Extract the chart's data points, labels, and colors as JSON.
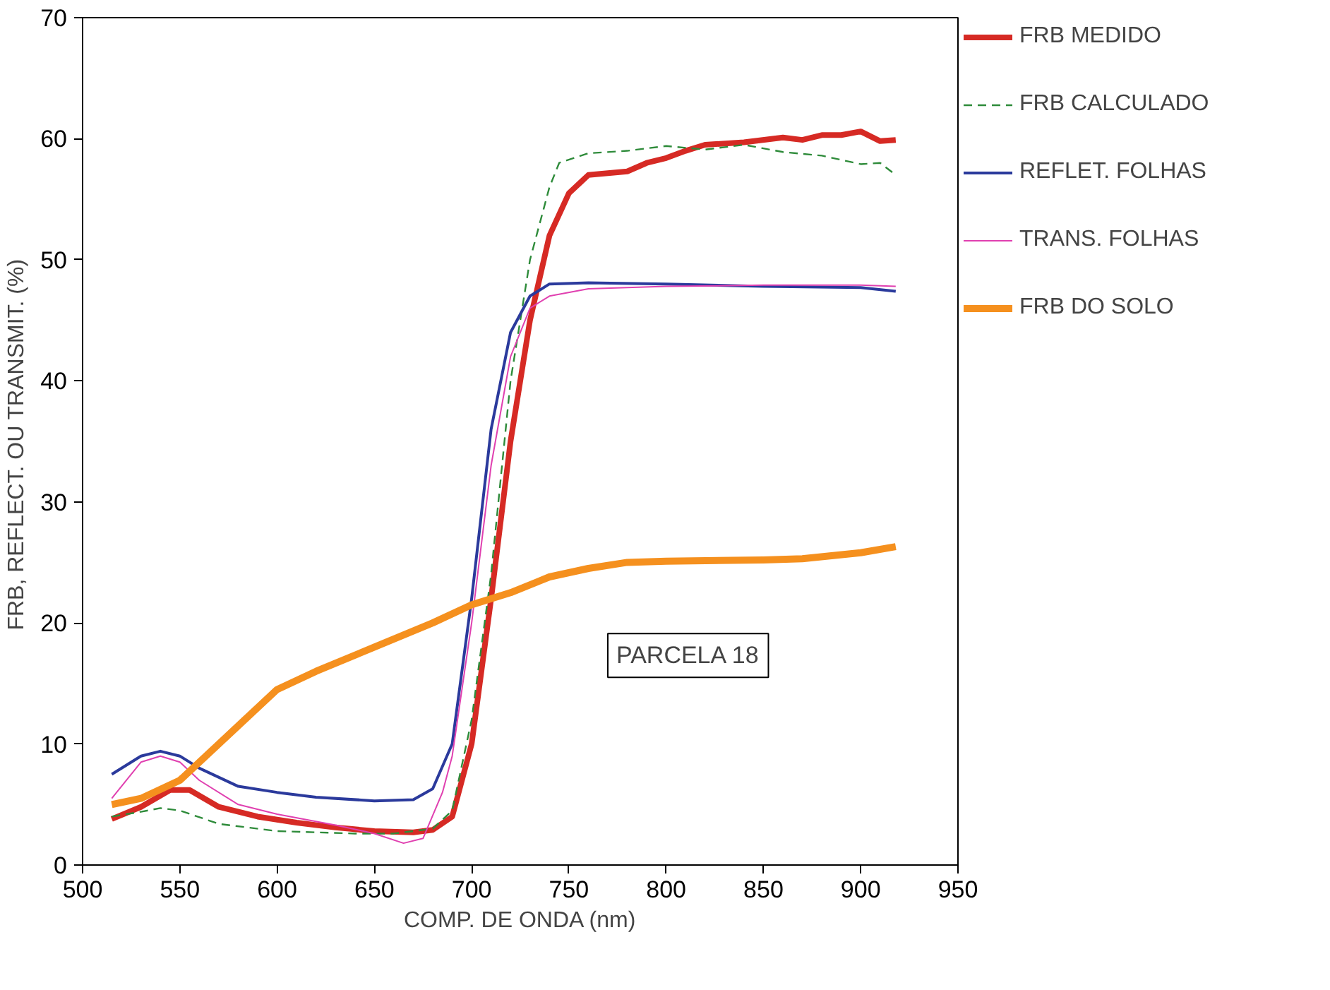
{
  "chart_data": {
    "type": "line",
    "xlabel": "COMP. DE ONDA (nm)",
    "ylabel": "FRB, REFLECT. OU TRANSMIT.  (%)",
    "xlim": [
      500,
      950
    ],
    "xticks": [
      500,
      550,
      600,
      650,
      700,
      750,
      800,
      850,
      900,
      950
    ],
    "ylim": [
      0,
      70
    ],
    "yticks": [
      0,
      10,
      20,
      30,
      40,
      50,
      60,
      70
    ],
    "grid": false,
    "legend": "right",
    "marker": "none",
    "annotations": [
      "PARCELA 18"
    ],
    "series": [
      {
        "name": "FRB MEDIDO",
        "color": "#d62a24",
        "line_style": "solid",
        "x": [
          515,
          530,
          545,
          555,
          570,
          590,
          610,
          630,
          650,
          670,
          680,
          690,
          700,
          710,
          720,
          730,
          740,
          750,
          760,
          780,
          790,
          800,
          810,
          820,
          840,
          860,
          870,
          880,
          890,
          900,
          910,
          918
        ],
        "values": [
          3.8,
          4.8,
          6.2,
          6.2,
          4.8,
          4,
          3.5,
          3.1,
          2.8,
          2.7,
          2.9,
          4,
          10,
          22,
          35,
          45,
          52,
          55.5,
          57,
          57.3,
          58,
          58.4,
          59,
          59.5,
          59.7,
          60.1,
          59.9,
          60.3,
          60.3,
          60.6,
          59.8,
          59.9
        ]
      },
      {
        "name": "FRB CALCULADO",
        "color": "#2e8b3a",
        "line_style": "dashed",
        "x": [
          515,
          530,
          540,
          550,
          570,
          600,
          640,
          660,
          680,
          690,
          700,
          710,
          720,
          730,
          740,
          745,
          760,
          780,
          800,
          820,
          840,
          860,
          880,
          900,
          910,
          918
        ],
        "values": [
          4,
          4.4,
          4.7,
          4.5,
          3.4,
          2.8,
          2.6,
          2.6,
          3,
          4.5,
          12,
          24,
          40,
          50,
          56,
          58,
          58.8,
          59,
          59.4,
          59.1,
          59.5,
          58.9,
          58.6,
          57.9,
          58,
          57
        ]
      },
      {
        "name": "REFLET. FOLHAS",
        "color": "#2b3a9c",
        "line_style": "solid",
        "x": [
          515,
          530,
          540,
          550,
          560,
          580,
          600,
          620,
          650,
          670,
          680,
          690,
          700,
          710,
          720,
          730,
          740,
          760,
          800,
          850,
          900,
          918
        ],
        "values": [
          7.5,
          9,
          9.4,
          9,
          8,
          6.5,
          6,
          5.6,
          5.3,
          5.4,
          6.3,
          10,
          22,
          36,
          44,
          47,
          48,
          48.1,
          48,
          47.8,
          47.7,
          47.4
        ]
      },
      {
        "name": "TRANS. FOLHAS",
        "color": "#e040b0",
        "line_style": "solid",
        "x": [
          515,
          530,
          540,
          550,
          560,
          580,
          600,
          630,
          650,
          665,
          675,
          685,
          690,
          700,
          710,
          720,
          730,
          740,
          760,
          800,
          850,
          900,
          918
        ],
        "values": [
          5.5,
          8.5,
          9,
          8.5,
          7,
          5,
          4.2,
          3.3,
          2.6,
          1.8,
          2.2,
          6,
          9,
          20,
          33,
          42,
          46,
          47,
          47.6,
          47.8,
          47.9,
          47.9,
          47.8
        ]
      },
      {
        "name": "FRB DO SOLO",
        "color": "#f5901e",
        "line_style": "solid",
        "x": [
          515,
          530,
          550,
          570,
          590,
          600,
          620,
          650,
          680,
          700,
          720,
          740,
          760,
          780,
          800,
          850,
          870,
          900,
          918
        ],
        "values": [
          5,
          5.5,
          7,
          10,
          13,
          14.5,
          16,
          18,
          20,
          21.5,
          22.5,
          23.8,
          24.5,
          25,
          25.1,
          25.2,
          25.3,
          25.8,
          26.3
        ]
      }
    ]
  }
}
